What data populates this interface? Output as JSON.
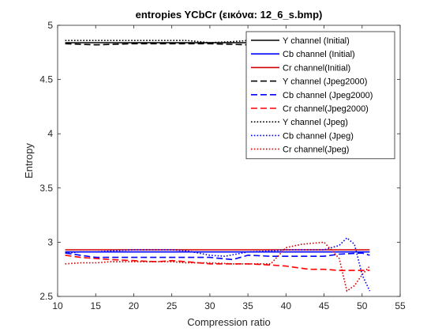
{
  "chart_data": {
    "type": "line",
    "title": "entropies YCbCr (εικόνα: 12_6_s.bmp)",
    "xlabel": "Compression ratio",
    "ylabel": "Entropy",
    "xlim": [
      10,
      55
    ],
    "ylim": [
      2.5,
      5
    ],
    "xticks": [
      "10",
      "15",
      "20",
      "25",
      "30",
      "35",
      "40",
      "45",
      "50",
      "55"
    ],
    "xtick_values": [
      10,
      15,
      20,
      25,
      30,
      35,
      40,
      45,
      50,
      55
    ],
    "yticks": [
      "2.5",
      "3",
      "3.5",
      "4",
      "4.5",
      "5"
    ],
    "ytick_values": [
      2.5,
      3,
      3.5,
      4,
      4.5,
      5
    ],
    "grid": false,
    "legend_position": "top-right",
    "series": [
      {
        "name": "Y channel (Initial)",
        "color": "#000000",
        "style": "solid",
        "x": [
          11,
          51
        ],
        "y": [
          4.84,
          4.84
        ]
      },
      {
        "name": "Cb channel (Initial)",
        "color": "#0000ff",
        "style": "solid",
        "x": [
          11,
          51
        ],
        "y": [
          2.91,
          2.91
        ]
      },
      {
        "name": "Cr channel(Initial)",
        "color": "#d00000",
        "style": "solid",
        "x": [
          11,
          51
        ],
        "y": [
          2.93,
          2.93
        ]
      },
      {
        "name": "Y channel (Jpeg2000)",
        "color": "#000000",
        "style": "dashed",
        "x": [
          11,
          15,
          20,
          25,
          30,
          35,
          40,
          45,
          51
        ],
        "y": [
          4.83,
          4.82,
          4.83,
          4.83,
          4.83,
          4.82,
          4.82,
          4.82,
          4.82
        ]
      },
      {
        "name": "Cb channel (Jpeg2000)",
        "color": "#0000ff",
        "style": "dashed",
        "x": [
          11,
          13,
          15,
          17,
          20,
          23,
          25,
          27,
          30,
          33,
          35,
          38,
          40,
          43,
          45,
          47,
          50,
          51
        ],
        "y": [
          2.9,
          2.88,
          2.86,
          2.86,
          2.86,
          2.86,
          2.86,
          2.86,
          2.86,
          2.84,
          2.88,
          2.87,
          2.87,
          2.87,
          2.87,
          2.89,
          2.9,
          2.88
        ]
      },
      {
        "name": "Cr channel(Jpeg2000)",
        "color": "#ff0000",
        "style": "dashed",
        "x": [
          11,
          13,
          15,
          17,
          20,
          23,
          25,
          27,
          30,
          33,
          35,
          38,
          40,
          43,
          45,
          47,
          50,
          51
        ],
        "y": [
          2.88,
          2.86,
          2.85,
          2.84,
          2.83,
          2.82,
          2.83,
          2.82,
          2.8,
          2.8,
          2.8,
          2.79,
          2.78,
          2.75,
          2.75,
          2.74,
          2.74,
          2.74
        ]
      },
      {
        "name": "Y channel (Jpeg)",
        "color": "#000000",
        "style": "dotted",
        "x": [
          11,
          15,
          20,
          25,
          27,
          30,
          33,
          35,
          40,
          45,
          51
        ],
        "y": [
          4.86,
          4.86,
          4.86,
          4.86,
          4.86,
          4.84,
          4.85,
          4.86,
          4.86,
          4.86,
          4.86
        ]
      },
      {
        "name": "Cb channel (Jpeg)",
        "color": "#0000ff",
        "style": "dotted",
        "x": [
          11,
          13,
          15,
          17,
          20,
          23,
          25,
          27,
          30,
          32,
          35,
          38,
          40,
          43,
          45,
          47,
          48,
          49,
          50,
          51
        ],
        "y": [
          2.9,
          2.91,
          2.91,
          2.92,
          2.93,
          2.93,
          2.93,
          2.92,
          2.88,
          2.87,
          2.91,
          2.92,
          2.93,
          2.93,
          2.93,
          2.97,
          3.04,
          2.98,
          2.7,
          2.55
        ]
      },
      {
        "name": "Cr channel(Jpeg)",
        "color": "#d00000",
        "style": "dotted",
        "x": [
          11,
          13,
          15,
          17,
          20,
          23,
          25,
          27,
          30,
          33,
          35,
          38,
          40,
          42,
          45,
          47,
          48,
          49,
          50,
          51
        ],
        "y": [
          2.8,
          2.81,
          2.81,
          2.82,
          2.82,
          2.82,
          2.82,
          2.81,
          2.81,
          2.8,
          2.8,
          2.8,
          2.95,
          2.98,
          3.0,
          2.85,
          2.55,
          2.6,
          2.7,
          2.78
        ]
      }
    ]
  }
}
